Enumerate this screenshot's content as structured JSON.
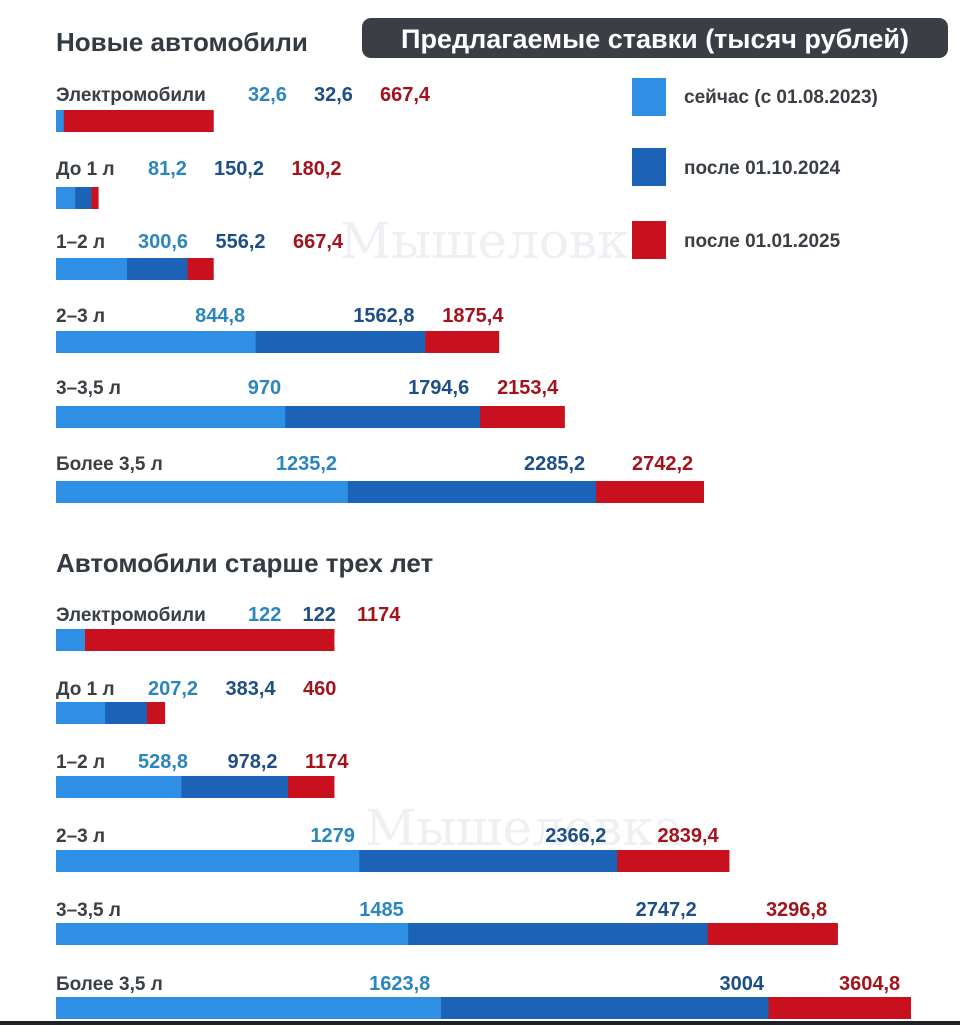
{
  "header": {
    "title": "Предлагаемые ставки (тысяч рублей)"
  },
  "legend": [
    {
      "label": "сейчас (с 01.08.2023)",
      "color": "#2e8fe4"
    },
    {
      "label": "после 01.10.2024",
      "color": "#1c63b8"
    },
    {
      "label": "после 01.01.2025",
      "color": "#c8101e"
    }
  ],
  "watermark": "Мышеловка",
  "colors": {
    "now": "#2e8fe4",
    "oct2024": "#1c63b8",
    "jan2025": "#c8101e",
    "label_now": "#2b86be",
    "label_oct2024": "#1d4f86",
    "label_jan2025": "#a3131c"
  },
  "chart_data": [
    {
      "type": "bar",
      "orientation": "horizontal",
      "stacked_overlay": true,
      "title": "Новые автомобили",
      "series": [
        {
          "name": "сейчас (с 01.08.2023)",
          "values": [
            32.6,
            81.2,
            300.6,
            844.8,
            970,
            1235.2
          ]
        },
        {
          "name": "после 01.10.2024",
          "values": [
            32.6,
            150.2,
            556.2,
            1562.8,
            1794.6,
            2285.2
          ]
        },
        {
          "name": "после 01.01.2025",
          "values": [
            667.4,
            180.2,
            667.4,
            1875.4,
            2153.4,
            2742.2
          ]
        }
      ],
      "categories": [
        "Электромобили",
        "До 1 л",
        "1–2 л",
        "2–3 л",
        "3–3,5 л",
        "Более 3,5 л"
      ],
      "labels": [
        [
          "32,6",
          "32,6",
          "667,4"
        ],
        [
          "81,2",
          "150,2",
          "180,2"
        ],
        [
          "300,6",
          "556,2",
          "667,4"
        ],
        [
          "844,8",
          "1562,8",
          "1875,4"
        ],
        [
          "970",
          "1794,6",
          "2153,4"
        ],
        [
          "1235,2",
          "2285,2",
          "2742,2"
        ]
      ]
    },
    {
      "type": "bar",
      "orientation": "horizontal",
      "stacked_overlay": true,
      "title": "Автомобили старше трех лет",
      "series": [
        {
          "name": "сейчас (с 01.08.2023)",
          "values": [
            122,
            207.2,
            528.8,
            1279,
            1485,
            1623.8
          ]
        },
        {
          "name": "после 01.10.2024",
          "values": [
            122,
            383.4,
            978.2,
            2366.2,
            2747.2,
            3004
          ]
        },
        {
          "name": "после 01.01.2025",
          "values": [
            1174,
            460,
            1174,
            2839.4,
            3296.8,
            3604.8
          ]
        }
      ],
      "categories": [
        "Электромобили",
        "До 1 л",
        "1–2 л",
        "2–3 л",
        "3–3,5 л",
        "Более 3,5 л"
      ],
      "labels": [
        [
          "122",
          "122",
          "1174"
        ],
        [
          "207,2",
          "383,4",
          "460"
        ],
        [
          "528,8",
          "978,2",
          "1174"
        ],
        [
          "1279",
          "2366,2",
          "2839,4"
        ],
        [
          "1485",
          "2747,2",
          "3296,8"
        ],
        [
          "1623,8",
          "3004",
          "3604,8"
        ]
      ]
    }
  ]
}
